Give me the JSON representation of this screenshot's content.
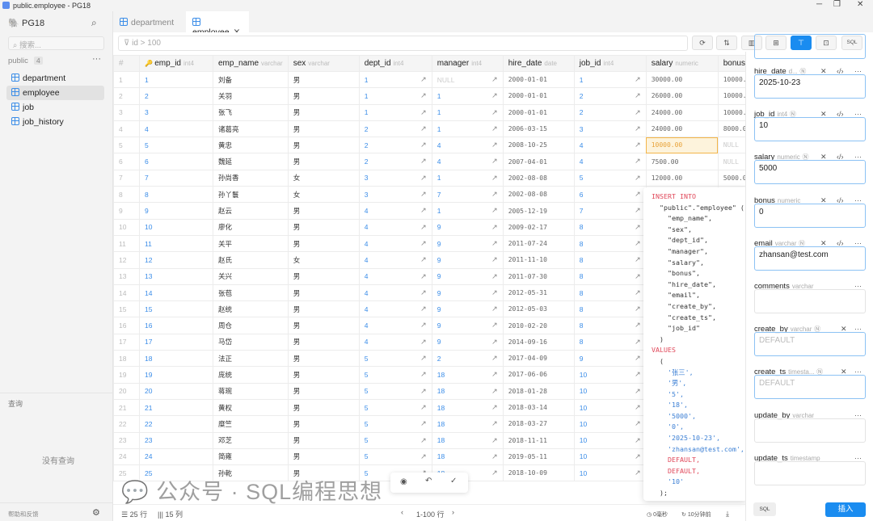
{
  "window": {
    "title": "public.employee - PG18"
  },
  "sidebar": {
    "connection": "PG18",
    "search_placeholder": "搜索...",
    "schema": "public",
    "schema_count": "4",
    "items": [
      {
        "label": "department"
      },
      {
        "label": "employee"
      },
      {
        "label": "job"
      },
      {
        "label": "job_history"
      }
    ],
    "active_item": "employee",
    "queries_title": "查询",
    "no_queries": "没有查询",
    "help": "帮助和反馈"
  },
  "tabs": [
    {
      "label": "department"
    },
    {
      "label": "employee"
    }
  ],
  "toolbar": {
    "filter_value": "id > 100",
    "sql_label": "SQL",
    "accent": "#1a8cf0"
  },
  "table": {
    "columns": [
      {
        "name": "#",
        "type": ""
      },
      {
        "name": "emp_id",
        "type": "int4"
      },
      {
        "name": "emp_name",
        "type": "varchar"
      },
      {
        "name": "sex",
        "type": "varchar"
      },
      {
        "name": "dept_id",
        "type": "int4"
      },
      {
        "name": "manager",
        "type": "int4"
      },
      {
        "name": "hire_date",
        "type": "date"
      },
      {
        "name": "job_id",
        "type": "int4"
      },
      {
        "name": "salary",
        "type": "numeric"
      },
      {
        "name": "bonus",
        "type": "numeric"
      }
    ],
    "rows": [
      [
        "1",
        "刘备",
        "男",
        "1",
        "NULL",
        "2000-01-01",
        "1",
        "30000.00",
        "10000.00"
      ],
      [
        "2",
        "关羽",
        "男",
        "1",
        "1",
        "2000-01-01",
        "2",
        "26000.00",
        "10000.00"
      ],
      [
        "3",
        "张飞",
        "男",
        "1",
        "1",
        "2000-01-01",
        "2",
        "24000.00",
        "10000.00"
      ],
      [
        "4",
        "诸葛亮",
        "男",
        "2",
        "1",
        "2006-03-15",
        "3",
        "24000.00",
        "8000.00"
      ],
      [
        "5",
        "黄忠",
        "男",
        "2",
        "4",
        "2008-10-25",
        "4",
        "10000.00",
        "NULL"
      ],
      [
        "6",
        "魏延",
        "男",
        "2",
        "4",
        "2007-04-01",
        "4",
        "7500.00",
        "NULL"
      ],
      [
        "7",
        "孙尚香",
        "女",
        "3",
        "1",
        "2002-08-08",
        "5",
        "12000.00",
        "5000.00"
      ],
      [
        "8",
        "孙丫鬟",
        "女",
        "3",
        "7",
        "2002-08-08",
        "6",
        "",
        ""
      ],
      [
        "9",
        "赵云",
        "男",
        "4",
        "1",
        "2005-12-19",
        "7",
        "",
        ""
      ],
      [
        "10",
        "廖化",
        "男",
        "4",
        "9",
        "2009-02-17",
        "8",
        "",
        ""
      ],
      [
        "11",
        "关平",
        "男",
        "4",
        "9",
        "2011-07-24",
        "8",
        "",
        ""
      ],
      [
        "12",
        "赵氏",
        "女",
        "4",
        "9",
        "2011-11-10",
        "8",
        "",
        ""
      ],
      [
        "13",
        "关兴",
        "男",
        "4",
        "9",
        "2011-07-30",
        "8",
        "",
        ""
      ],
      [
        "14",
        "张苞",
        "男",
        "4",
        "9",
        "2012-05-31",
        "8",
        "",
        ""
      ],
      [
        "15",
        "赵统",
        "男",
        "4",
        "9",
        "2012-05-03",
        "8",
        "",
        ""
      ],
      [
        "16",
        "周仓",
        "男",
        "4",
        "9",
        "2010-02-20",
        "8",
        "",
        ""
      ],
      [
        "17",
        "马岱",
        "男",
        "4",
        "9",
        "2014-09-16",
        "8",
        "",
        ""
      ],
      [
        "18",
        "法正",
        "男",
        "5",
        "2",
        "2017-04-09",
        "9",
        "",
        ""
      ],
      [
        "19",
        "庞统",
        "男",
        "5",
        "18",
        "2017-06-06",
        "10",
        "",
        ""
      ],
      [
        "20",
        "蒋琬",
        "男",
        "5",
        "18",
        "2018-01-28",
        "10",
        "",
        ""
      ],
      [
        "21",
        "黄权",
        "男",
        "5",
        "18",
        "2018-03-14",
        "10",
        "",
        ""
      ],
      [
        "22",
        "糜竺",
        "男",
        "5",
        "18",
        "2018-03-27",
        "10",
        "",
        ""
      ],
      [
        "23",
        "邓芝",
        "男",
        "5",
        "18",
        "2018-11-11",
        "10",
        "",
        ""
      ],
      [
        "24",
        "简雍",
        "男",
        "5",
        "18",
        "2019-05-11",
        "10",
        "",
        ""
      ],
      [
        "25",
        "孙乾",
        "男",
        "5",
        "18",
        "2018-10-09",
        "10",
        "",
        ""
      ]
    ],
    "selected_cell": {
      "row": 5,
      "column": "salary"
    }
  },
  "footer": {
    "rows": "25 行",
    "cols": "15 列",
    "range": "1-100 行",
    "elapsed": "0毫秒",
    "updated": "10分钟前"
  },
  "form": {
    "fields": [
      {
        "name": "hire_date",
        "type": "d...",
        "value": "2025-10-23",
        "placeholder": ""
      },
      {
        "name": "job_id",
        "type": "int4",
        "value": "10",
        "placeholder": ""
      },
      {
        "name": "salary",
        "type": "numeric",
        "value": "5000",
        "placeholder": ""
      },
      {
        "name": "bonus",
        "type": "numeric",
        "value": "0",
        "placeholder": ""
      },
      {
        "name": "email",
        "type": "varchar",
        "value": "zhansan@test.com",
        "placeholder": ""
      },
      {
        "name": "comments",
        "type": "varchar",
        "value": "",
        "placeholder": ""
      },
      {
        "name": "create_by",
        "type": "varchar",
        "value": "",
        "placeholder": "DEFAULT"
      },
      {
        "name": "create_ts",
        "type": "timesta...",
        "value": "",
        "placeholder": "DEFAULT"
      },
      {
        "name": "update_by",
        "type": "varchar",
        "value": "",
        "placeholder": ""
      },
      {
        "name": "update_ts",
        "type": "timestamp",
        "value": "",
        "placeholder": ""
      }
    ],
    "sql_button": "SQL",
    "insert_button": "插入"
  },
  "sql_preview": {
    "keyword_insert": "INSERT INTO",
    "target": "\"public\".\"employee\" (",
    "columns": [
      "\"emp_name\",",
      "\"sex\",",
      "\"dept_id\",",
      "\"manager\",",
      "\"salary\",",
      "\"bonus\",",
      "\"hire_date\",",
      "\"email\",",
      "\"create_by\",",
      "\"create_ts\",",
      "\"job_id\""
    ],
    "close_paren": ")",
    "keyword_values": "VALUES",
    "open_paren": "(",
    "values": [
      {
        "v": "'张三',",
        "k": "str"
      },
      {
        "v": "'男',",
        "k": "str"
      },
      {
        "v": "'5',",
        "k": "str"
      },
      {
        "v": "'18',",
        "k": "str"
      },
      {
        "v": "'5000',",
        "k": "str"
      },
      {
        "v": "'0',",
        "k": "str"
      },
      {
        "v": "'2025-10-23',",
        "k": "str"
      },
      {
        "v": "'zhansan@test.com',",
        "k": "str"
      },
      {
        "v": "DEFAULT,",
        "k": "kw"
      },
      {
        "v": "DEFAULT,",
        "k": "kw"
      },
      {
        "v": "'10'",
        "k": "str"
      }
    ],
    "end": ");"
  },
  "watermark": "公众号 · SQL编程思想"
}
